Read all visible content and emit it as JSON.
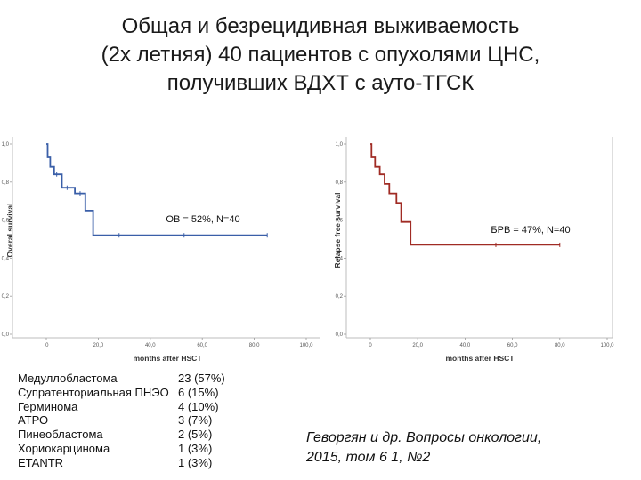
{
  "title_lines": [
    "Общая и безрецидивная выживаемость",
    "(2х летняя) 40 пациентов с опухолями ЦНС,",
    "получивших ВДХТ с ауто-ТГСК"
  ],
  "diagnoses": [
    {
      "name": "Медуллобластома",
      "value": "23 (57%)"
    },
    {
      "name": "Супратенториальная ПНЭО",
      "value": "6 (15%)"
    },
    {
      "name": "Герминома",
      "value": "4 (10%)"
    },
    {
      "name": "АТРО",
      "value": "3 (7%)"
    },
    {
      "name": "Пинеобластома",
      "value": "2 (5%)"
    },
    {
      "name": "Хориокарцинома",
      "value": "1 (3%)"
    },
    {
      "name": "ETANTR",
      "value": "1 (3%)"
    }
  ],
  "citation_lines": [
    "Геворгян и др. Вопросы онкологии,",
    "2015, том 6 1, №2"
  ],
  "chart_data": [
    {
      "type": "line",
      "step": true,
      "ylabel": "Overal survival",
      "xlabel": "months after HSCT",
      "annotation": "OB = 52%, N=40",
      "xticks": [
        ",0",
        "20,0",
        "40,0",
        "60,0",
        "80,0",
        "100,0"
      ],
      "yticks": [
        "0,0",
        "0,2",
        "0,4",
        "0,6",
        "0,8",
        "1,0"
      ],
      "xlim": [
        0,
        100
      ],
      "ylim": [
        0,
        1
      ],
      "color": "#3a5fa8",
      "series": [
        {
          "x": [
            0,
            0.5,
            0.5,
            1.5,
            1.5,
            3,
            3,
            6,
            6,
            11,
            11,
            15,
            15,
            18,
            18,
            85
          ],
          "y": [
            1.0,
            1.0,
            0.93,
            0.93,
            0.88,
            0.88,
            0.84,
            0.84,
            0.77,
            0.77,
            0.74,
            0.74,
            0.65,
            0.65,
            0.52,
            0.52
          ]
        }
      ],
      "censored_x": [
        4,
        8,
        13,
        28,
        53,
        85
      ]
    },
    {
      "type": "line",
      "step": true,
      "ylabel": "Relapse free survival",
      "xlabel": "months after HSCT",
      "annotation": "БРВ = 47%, N=40",
      "xticks": [
        "0",
        "20,0",
        "40,0",
        "60,0",
        "80,0",
        "100,0"
      ],
      "yticks": [
        "0,0",
        "0,2",
        "0,4",
        "0,6",
        "0,8",
        "1,0"
      ],
      "xlim": [
        0,
        100
      ],
      "ylim": [
        0,
        1
      ],
      "color": "#a02b24",
      "series": [
        {
          "x": [
            0,
            0.5,
            0.5,
            2,
            2,
            4,
            4,
            6,
            6,
            8,
            8,
            11,
            11,
            13,
            13,
            17,
            17,
            80
          ],
          "y": [
            1.0,
            1.0,
            0.93,
            0.93,
            0.88,
            0.88,
            0.84,
            0.84,
            0.79,
            0.79,
            0.74,
            0.74,
            0.69,
            0.69,
            0.59,
            0.59,
            0.47,
            0.47
          ]
        }
      ],
      "censored_x": [
        53,
        80
      ]
    }
  ]
}
